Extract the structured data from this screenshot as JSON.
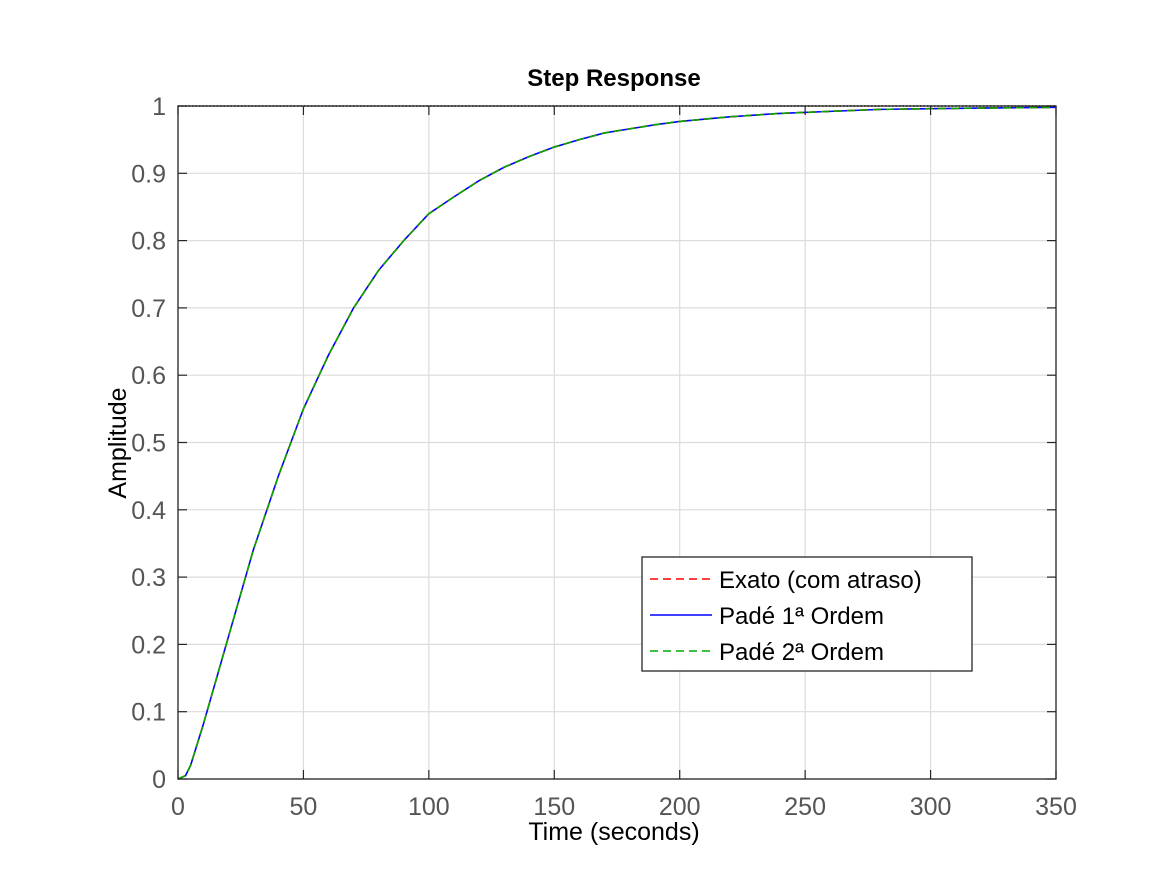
{
  "chart_data": {
    "type": "line",
    "title": "Step Response",
    "xlabel": "Time (seconds)",
    "ylabel": "Amplitude",
    "xlim": [
      0,
      350
    ],
    "ylim": [
      0,
      1
    ],
    "x_ticks": [
      0,
      50,
      100,
      150,
      200,
      250,
      300,
      350
    ],
    "y_ticks": [
      0,
      0.1,
      0.2,
      0.3,
      0.4,
      0.5,
      0.6,
      0.7,
      0.8,
      0.9,
      1
    ],
    "grid": true,
    "legend_position": "bottom-right",
    "steady_state_value": 1,
    "x": [
      0,
      3,
      5,
      10,
      20,
      30,
      40,
      50,
      60,
      70,
      80,
      90,
      100,
      110,
      120,
      130,
      140,
      150,
      160,
      170,
      180,
      190,
      200,
      220,
      240,
      260,
      280,
      300,
      320,
      350
    ],
    "series": [
      {
        "name": "Exato (com atraso)",
        "color": "#ff0000",
        "style": "dashed",
        "values": [
          0,
          0.005,
          0.02,
          0.08,
          0.21,
          0.34,
          0.45,
          0.55,
          0.63,
          0.7,
          0.756,
          0.8,
          0.84,
          0.865,
          0.889,
          0.909,
          0.925,
          0.939,
          0.95,
          0.96,
          0.966,
          0.972,
          0.977,
          0.984,
          0.989,
          0.992,
          0.995,
          0.996,
          0.997,
          0.998
        ]
      },
      {
        "name": "Padé 1ª Ordem",
        "color": "#0000ff",
        "style": "solid",
        "values": [
          0,
          0.005,
          0.02,
          0.08,
          0.21,
          0.34,
          0.45,
          0.55,
          0.63,
          0.7,
          0.756,
          0.8,
          0.84,
          0.865,
          0.889,
          0.909,
          0.925,
          0.939,
          0.95,
          0.96,
          0.966,
          0.972,
          0.977,
          0.984,
          0.989,
          0.992,
          0.995,
          0.996,
          0.997,
          0.998
        ]
      },
      {
        "name": "Padé 2ª Ordem",
        "color": "#00aa00",
        "style": "dashed",
        "values": [
          0,
          0.005,
          0.02,
          0.08,
          0.21,
          0.34,
          0.45,
          0.55,
          0.63,
          0.7,
          0.756,
          0.8,
          0.84,
          0.865,
          0.889,
          0.909,
          0.925,
          0.939,
          0.95,
          0.96,
          0.966,
          0.972,
          0.977,
          0.984,
          0.989,
          0.992,
          0.995,
          0.996,
          0.997,
          0.998
        ]
      }
    ]
  }
}
